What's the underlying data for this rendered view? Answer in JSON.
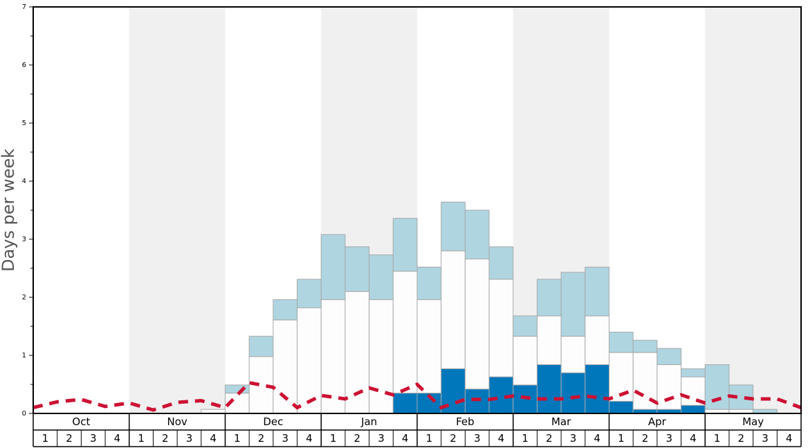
{
  "chart_data": {
    "type": "bar",
    "ylabel": "Days per week",
    "xlabel": "",
    "ylim": [
      0,
      7
    ],
    "yticks": [
      "0",
      "1",
      "2",
      "3",
      "4",
      "5",
      "6",
      "7"
    ],
    "months": [
      "Oct",
      "Nov",
      "Dec",
      "Jan",
      "Feb",
      "Mar",
      "Apr",
      "May"
    ],
    "week_labels": [
      "1",
      "2",
      "3",
      "4"
    ],
    "grid": false,
    "colors": {
      "base": "#0077bb",
      "middle": "#fdfdfd",
      "top": "#afd5e1",
      "bar_border": "#a8a8a8",
      "alt_month_band": "#f0f0f0",
      "dashed_line": "#cc1133"
    },
    "series": [
      {
        "values": [
          0,
          0,
          0,
          0,
          0,
          0,
          0,
          0,
          0,
          0,
          0,
          0,
          0,
          0,
          0,
          0.35,
          0.35,
          0.77,
          0.42,
          0.63,
          0.49,
          0.84,
          0.7,
          0.84,
          0.21,
          0.07,
          0.07,
          0.14,
          0,
          0,
          0,
          0,
          0,
          0,
          0,
          0
        ]
      },
      {
        "values": [
          0,
          0,
          0,
          0,
          0,
          0,
          0,
          0.07,
          0.35,
          0.98,
          1.61,
          1.82,
          1.96,
          2.1,
          1.96,
          2.1,
          1.61,
          2.03,
          2.24,
          1.68,
          0.84,
          0.84,
          0.63,
          0.84,
          0.84,
          0.98,
          0.77,
          0.49,
          0.07,
          0.07,
          0,
          0,
          0,
          0,
          0,
          0
        ]
      },
      {
        "values": [
          0,
          0,
          0,
          0,
          0,
          0,
          0,
          0,
          0.14,
          0.35,
          0.35,
          0.49,
          1.12,
          0.77,
          0.77,
          0.91,
          0.56,
          0.84,
          0.84,
          0.56,
          0.35,
          0.63,
          1.1,
          0.84,
          0.35,
          0.21,
          0.28,
          0.14,
          0.77,
          0.42,
          0.07,
          0,
          0,
          0,
          0,
          0
        ]
      },
      {
        "values": [
          0.1,
          0.2,
          0.24,
          0.12,
          0.18,
          0.06,
          0.19,
          0.22,
          0.1,
          0.53,
          0.45,
          0.1,
          0.31,
          0.25,
          0.44,
          0.32,
          0.5,
          0.1,
          0.24,
          0.24,
          0.3,
          0.25,
          0.25,
          0.3,
          0.25,
          0.4,
          0.18,
          0.32,
          0.18,
          0.3,
          0.25,
          0.25,
          0.1
        ]
      }
    ]
  }
}
